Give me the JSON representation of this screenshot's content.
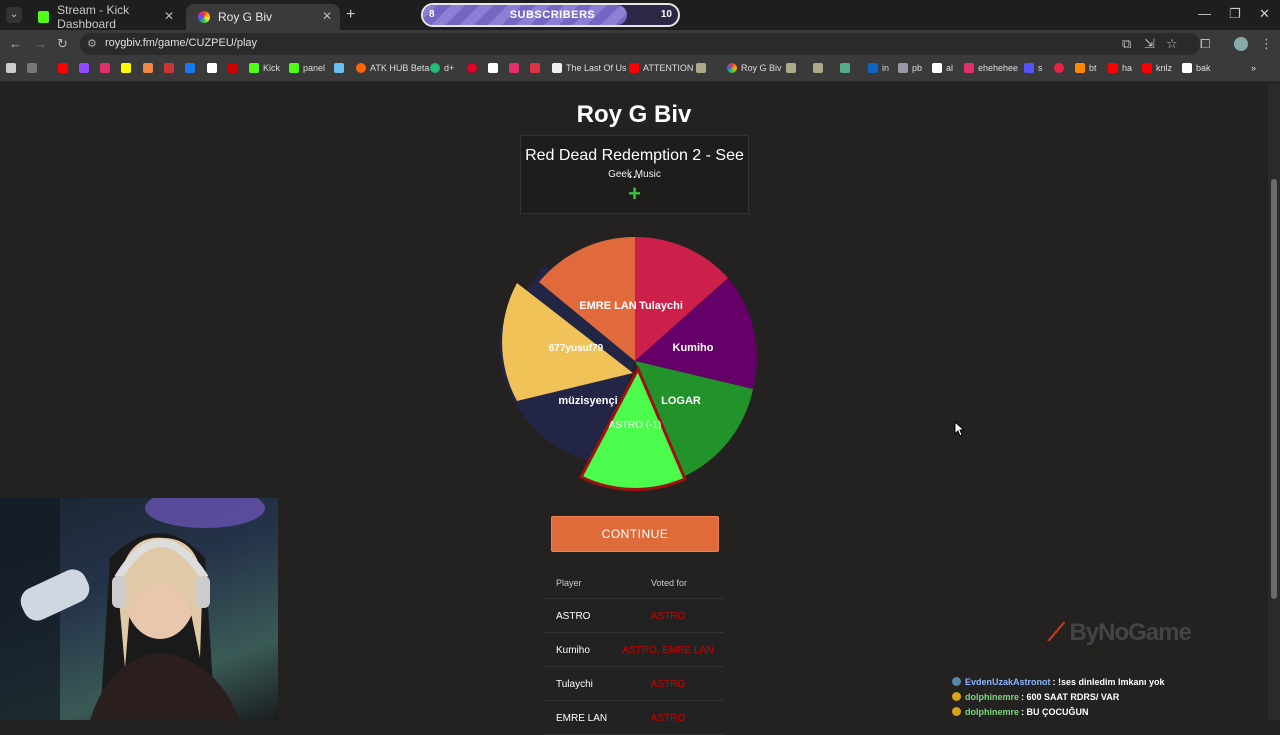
{
  "browser": {
    "tabs": [
      {
        "label": "Stream - Kick Dashboard",
        "active": false
      },
      {
        "label": "Roy G Biv",
        "active": true
      }
    ],
    "url": "roygbiv.fm/game/CUZPEU/play",
    "bookmarks": [
      "Kick",
      "panel",
      "ATK HUB Beta",
      "d+",
      "The Last Of Us",
      "ATTENTION",
      "Roy G Biv",
      "in",
      "pb",
      "al",
      "ehehehee",
      "s",
      "bt",
      "ha",
      "knlz",
      "bak"
    ]
  },
  "subscriber_goal": {
    "label": "SUBSCRIBERS",
    "current": "8",
    "target": "10",
    "progress": 0.8
  },
  "game": {
    "title": "Roy G Biv",
    "song_title": "Red Dead Redemption 2 - See ...",
    "song_artist": "Geek Music",
    "add_symbol": "+",
    "continue_label": "CONTINUE",
    "wheel_labels": [
      "Tulaychi",
      "Kumiho",
      "LOGAR",
      "ASTRO (-1)",
      "müzisyençi",
      "677yusuf79",
      "EMRE LAN"
    ]
  },
  "votes": {
    "header_player": "Player",
    "header_voted": "Voted for",
    "rows": [
      {
        "player": "ASTRO",
        "voted": "ASTRO"
      },
      {
        "player": "Kumiho",
        "voted": "ASTRO, EMRE LAN"
      },
      {
        "player": "Tulaychi",
        "voted": "ASTRO"
      },
      {
        "player": "EMRE LAN",
        "voted": "ASTRO"
      }
    ]
  },
  "overlay": {
    "brand": "ByNoGame",
    "chat": [
      {
        "user": "EvdenUzakAstronot",
        "message": ": !ses dinledim lmkanı yok",
        "color": "#8ab4ff"
      },
      {
        "user": "dolphinemre",
        "message": ": 600 SAAT RDRS/ VAR",
        "color": "#7cd67c"
      },
      {
        "user": "dolphinemre",
        "message": ": BU ÇOCUĞUN",
        "color": "#7cd67c"
      }
    ]
  }
}
